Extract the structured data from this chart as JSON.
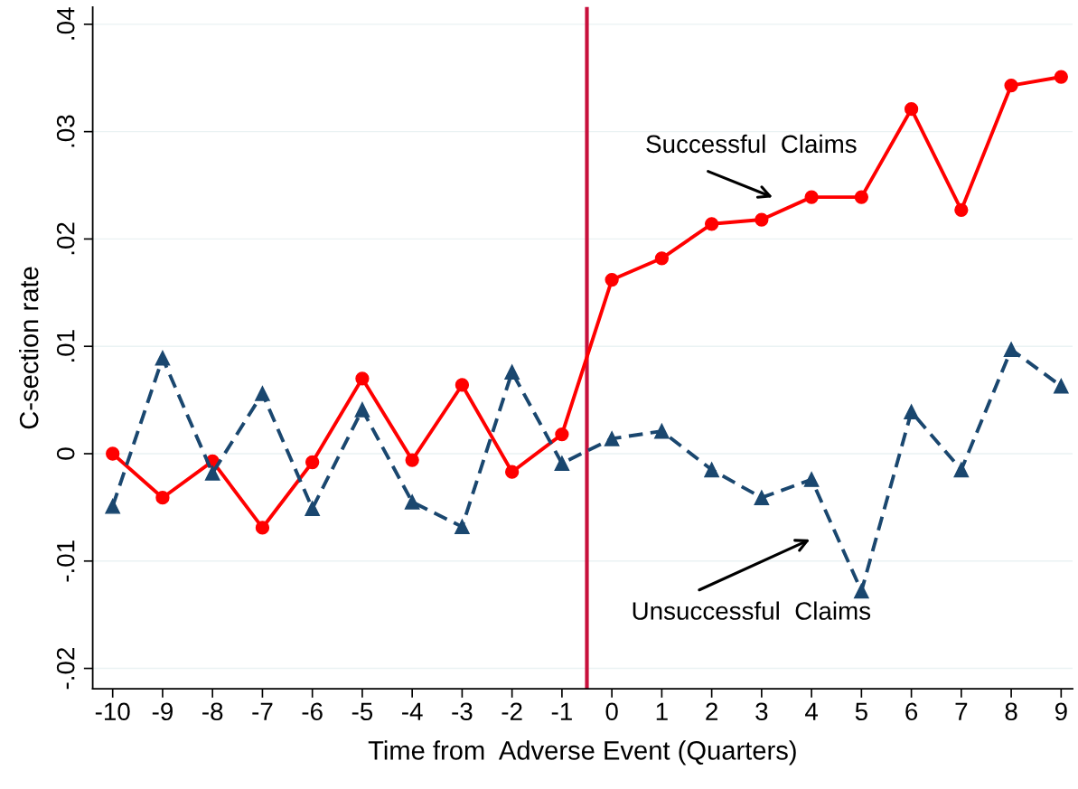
{
  "chart_data": {
    "type": "line",
    "xlabel": "Time from  Adverse Event (Quarters)",
    "ylabel": "C-section rate",
    "x": [
      -10,
      -9,
      -8,
      -7,
      -6,
      -5,
      -4,
      -3,
      -2,
      -1,
      0,
      1,
      2,
      3,
      4,
      5,
      6,
      7,
      8,
      9
    ],
    "series": [
      {
        "color": "#ff0000",
        "marker": "circle",
        "line_style": "solid",
        "values": [
          0.0,
          -0.0041,
          -0.0007,
          -0.0069,
          -0.0008,
          0.007,
          -0.0006,
          0.0064,
          -0.0017,
          0.0018,
          0.0162,
          0.0182,
          0.0214,
          0.0218,
          0.0239,
          0.0239,
          0.0321,
          0.0227,
          0.0343,
          0.0351
        ]
      },
      {
        "color": "#1a476f",
        "marker": "triangle",
        "line_style": "dashed",
        "values": [
          -0.0049,
          0.0089,
          -0.0018,
          0.0056,
          -0.0051,
          0.0041,
          -0.0045,
          -0.0068,
          0.0076,
          -0.0009,
          0.0014,
          0.0021,
          -0.0015,
          -0.0041,
          -0.0024,
          -0.0128,
          0.0039,
          -0.0015,
          0.0097,
          0.0063
        ]
      }
    ],
    "annotations": [
      "Successful  Claims",
      "Unsuccessful  Claims"
    ],
    "ref_lines": [
      {
        "axis": "x",
        "value": -0.5,
        "color": "#c8103c",
        "line_style": "solid"
      }
    ],
    "xlim": [
      -10.4,
      9.23
    ],
    "ylim": [
      -0.0219,
      0.0416
    ],
    "xticks": [
      -10,
      -9,
      -8,
      -7,
      -6,
      -5,
      -4,
      -3,
      -2,
      -1,
      0,
      1,
      2,
      3,
      4,
      5,
      6,
      7,
      8,
      9
    ],
    "yticks": [
      {
        "value": -0.02,
        "label": "-.02"
      },
      {
        "value": -0.01,
        "label": "-.01"
      },
      {
        "value": 0,
        "label": "0"
      },
      {
        "value": 0.01,
        "label": ".01"
      },
      {
        "value": 0.02,
        "label": ".02"
      },
      {
        "value": 0.03,
        "label": ".03"
      },
      {
        "value": 0.04,
        "label": ".04"
      }
    ],
    "grid": "y",
    "legend": false
  }
}
